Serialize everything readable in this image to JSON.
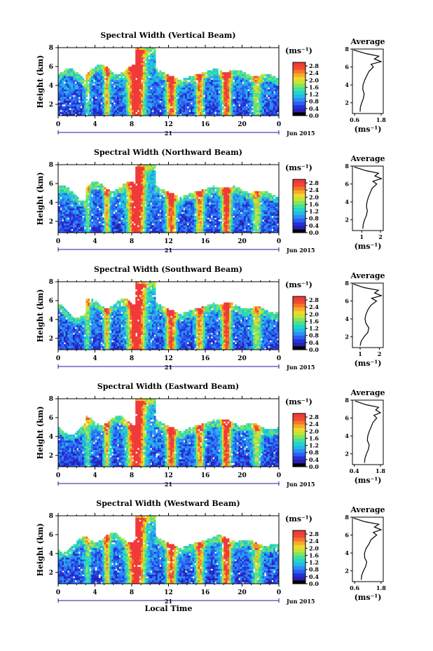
{
  "figure": {
    "y_label": "Height (km)",
    "x_label": "Local Time",
    "date_day": "21",
    "date_month": "Jun 2015",
    "colorbar_unit": "(ms⁻¹)",
    "avg_title": "Average",
    "avg_unit": "(ms⁻¹)"
  },
  "colors": {
    "colormap": [
      "#000000",
      "#2b1fb0",
      "#2233d8",
      "#2b5ff0",
      "#2f8cf5",
      "#25b8e6",
      "#21d6c8",
      "#44e09a",
      "#86e35f",
      "#c3e534",
      "#ecd92d",
      "#f7ab2a",
      "#f6762a",
      "#ef4a32",
      "#f03a3a"
    ]
  },
  "chart_data": [
    {
      "type": "heatmap",
      "title": "Spectral Width (Vertical Beam)",
      "x_ticks": [
        "0",
        "4",
        "8",
        "12",
        "16",
        "20",
        "0"
      ],
      "y_ticks": [
        "2",
        "4",
        "6",
        "8"
      ],
      "xlim": [
        0,
        24
      ],
      "ylim": [
        0.8,
        8
      ],
      "colorbar_ticks": [
        "2.8",
        "2.4",
        "2.0",
        "1.6",
        "1.2",
        "0.8",
        "0.4",
        "0.0"
      ],
      "avg_x_ticks": [
        "0.6",
        "1.8"
      ],
      "avg_xlim": [
        0.5,
        1.9
      ],
      "avg_profile": [
        [
          0.85,
          1.0
        ],
        [
          0.86,
          1.5
        ],
        [
          0.92,
          2.0
        ],
        [
          1.0,
          2.5
        ],
        [
          1.03,
          3.0
        ],
        [
          0.97,
          3.5
        ],
        [
          0.98,
          4.0
        ],
        [
          1.05,
          4.5
        ],
        [
          1.15,
          5.0
        ],
        [
          1.25,
          5.5
        ],
        [
          1.45,
          6.0
        ],
        [
          1.35,
          6.3
        ],
        [
          1.8,
          6.6
        ],
        [
          1.5,
          6.9
        ],
        [
          1.7,
          7.2
        ],
        [
          1.1,
          7.5
        ],
        [
          0.55,
          7.9
        ]
      ]
    },
    {
      "type": "heatmap",
      "title": "Spectral Width (Northward Beam)",
      "x_ticks": [
        "0",
        "4",
        "8",
        "12",
        "16",
        "20",
        "0"
      ],
      "y_ticks": [
        "2",
        "4",
        "6",
        "8"
      ],
      "xlim": [
        0,
        24
      ],
      "ylim": [
        0.8,
        8
      ],
      "colorbar_ticks": [
        "2.8",
        "2.4",
        "2.0",
        "1.6",
        "1.2",
        "0.8",
        "0.4",
        "0.0"
      ],
      "avg_x_ticks": [
        "1",
        "2"
      ],
      "avg_xlim": [
        0.5,
        2.15
      ],
      "avg_profile": [
        [
          1.05,
          1.0
        ],
        [
          1.08,
          1.5
        ],
        [
          1.15,
          2.0
        ],
        [
          1.25,
          2.5
        ],
        [
          1.3,
          3.0
        ],
        [
          1.25,
          3.5
        ],
        [
          1.28,
          4.0
        ],
        [
          1.35,
          4.5
        ],
        [
          1.45,
          5.0
        ],
        [
          1.55,
          5.5
        ],
        [
          1.8,
          6.0
        ],
        [
          1.6,
          6.3
        ],
        [
          2.05,
          6.6
        ],
        [
          1.7,
          6.9
        ],
        [
          1.9,
          7.2
        ],
        [
          1.2,
          7.5
        ],
        [
          0.6,
          7.9
        ]
      ]
    },
    {
      "type": "heatmap",
      "title": "Spectral Width (Southward Beam)",
      "x_ticks": [
        "0",
        "4",
        "8",
        "12",
        "16",
        "20",
        "0"
      ],
      "y_ticks": [
        "2",
        "4",
        "6",
        "8"
      ],
      "xlim": [
        0,
        24
      ],
      "ylim": [
        0.8,
        8
      ],
      "colorbar_ticks": [
        "2.8",
        "2.4",
        "2.0",
        "1.6",
        "1.2",
        "0.8",
        "0.4",
        "0.0"
      ],
      "avg_x_ticks": [
        "1",
        "2"
      ],
      "avg_xlim": [
        0.6,
        2.2
      ],
      "avg_profile": [
        [
          1.0,
          1.0
        ],
        [
          1.05,
          1.5
        ],
        [
          1.2,
          2.0
        ],
        [
          1.4,
          2.5
        ],
        [
          1.45,
          3.0
        ],
        [
          1.3,
          3.5
        ],
        [
          1.25,
          4.0
        ],
        [
          1.3,
          4.5
        ],
        [
          1.4,
          5.0
        ],
        [
          1.55,
          5.5
        ],
        [
          1.85,
          6.0
        ],
        [
          1.6,
          6.3
        ],
        [
          2.1,
          6.6
        ],
        [
          1.75,
          6.9
        ],
        [
          1.95,
          7.2
        ],
        [
          1.2,
          7.5
        ],
        [
          0.65,
          7.9
        ]
      ]
    },
    {
      "type": "heatmap",
      "title": "Spectral Width (Eastward Beam)",
      "x_ticks": [
        "0",
        "4",
        "8",
        "12",
        "16",
        "20",
        "0"
      ],
      "y_ticks": [
        "2",
        "4",
        "6",
        "8"
      ],
      "xlim": [
        0,
        24
      ],
      "ylim": [
        0.8,
        8
      ],
      "colorbar_ticks": [
        "2.8",
        "2.4",
        "2.0",
        "1.6",
        "1.2",
        "0.8",
        "0.4",
        "0.0"
      ],
      "avg_x_ticks": [
        "0.4",
        "1.8"
      ],
      "avg_xlim": [
        0.3,
        1.95
      ],
      "avg_profile": [
        [
          0.95,
          1.0
        ],
        [
          0.97,
          1.5
        ],
        [
          1.05,
          2.0
        ],
        [
          1.15,
          2.5
        ],
        [
          1.2,
          3.0
        ],
        [
          1.1,
          3.5
        ],
        [
          1.12,
          4.0
        ],
        [
          1.2,
          4.5
        ],
        [
          1.3,
          5.0
        ],
        [
          1.4,
          5.5
        ],
        [
          1.6,
          6.0
        ],
        [
          1.45,
          6.3
        ],
        [
          1.8,
          6.6
        ],
        [
          1.55,
          6.9
        ],
        [
          1.7,
          7.2
        ],
        [
          1.0,
          7.5
        ],
        [
          0.45,
          7.9
        ]
      ]
    },
    {
      "type": "heatmap",
      "title": "Spectral Width (Westward Beam)",
      "x_ticks": [
        "0",
        "4",
        "8",
        "12",
        "16",
        "20",
        "0"
      ],
      "y_ticks": [
        "2",
        "4",
        "6",
        "8"
      ],
      "xlim": [
        0,
        24
      ],
      "ylim": [
        0.8,
        8
      ],
      "colorbar_ticks": [
        "2.8",
        "2.4",
        "2.0",
        "1.6",
        "1.2",
        "0.8",
        "0.4",
        "0.0"
      ],
      "avg_x_ticks": [
        "0.6",
        "1.8"
      ],
      "avg_xlim": [
        0.5,
        1.9
      ],
      "avg_profile": [
        [
          0.9,
          1.0
        ],
        [
          0.92,
          1.5
        ],
        [
          1.0,
          2.0
        ],
        [
          1.1,
          2.5
        ],
        [
          1.15,
          3.0
        ],
        [
          1.05,
          3.5
        ],
        [
          1.05,
          4.0
        ],
        [
          1.12,
          4.5
        ],
        [
          1.25,
          5.0
        ],
        [
          1.35,
          5.5
        ],
        [
          1.6,
          6.0
        ],
        [
          1.45,
          6.3
        ],
        [
          1.8,
          6.6
        ],
        [
          1.5,
          6.9
        ],
        [
          1.7,
          7.2
        ],
        [
          1.05,
          7.5
        ],
        [
          0.55,
          7.9
        ]
      ]
    }
  ]
}
